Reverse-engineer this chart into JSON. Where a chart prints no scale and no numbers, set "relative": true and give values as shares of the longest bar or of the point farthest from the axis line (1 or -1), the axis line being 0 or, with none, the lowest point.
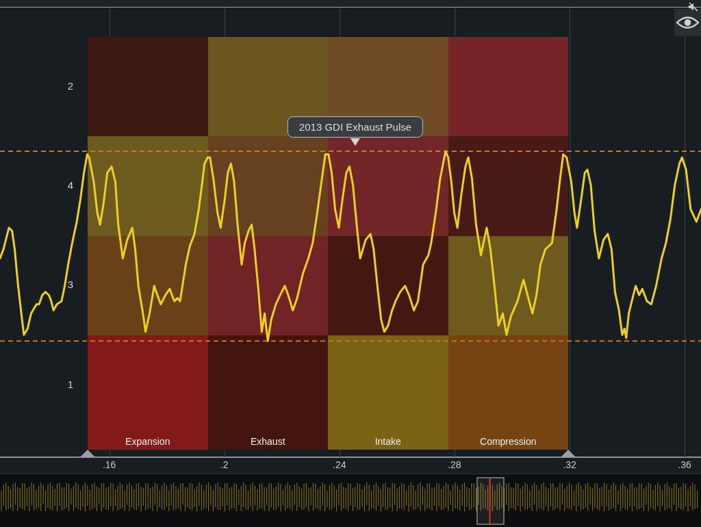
{
  "chart_data": [
    {
      "type": "other",
      "categories": [
        "Expansion",
        "Exhaust",
        "Intake",
        "Compression"
      ],
      "y_categories": [
        "2",
        "4",
        "3",
        "1"
      ],
      "colors": [
        "#3e1913",
        "#6b5620",
        "#6f4c25",
        "#762428",
        "#6c5a1e",
        "#65411f",
        "#732628",
        "#461a15",
        "#674218",
        "#722326",
        "#431811",
        "#6e5a1c",
        "#84191a",
        "#44150f",
        "#7a6314",
        "#754412"
      ]
    },
    {
      "type": "line",
      "title": "2013 GDI Exhaust Pulse",
      "relative": true,
      "x": [
        0.122,
        0.1232,
        0.1251,
        0.1262,
        0.1271,
        0.1283,
        0.1294,
        0.1303,
        0.1316,
        0.1328,
        0.1347,
        0.1356,
        0.1367,
        0.1378,
        0.139,
        0.1398,
        0.1406,
        0.1418,
        0.1434,
        0.1445,
        0.1457,
        0.1471,
        0.1487,
        0.1499,
        0.1512,
        0.1523,
        0.153,
        0.1546,
        0.1558,
        0.1568,
        0.158,
        0.1593,
        0.1608,
        0.1621,
        0.1631,
        0.1647,
        0.1662,
        0.168,
        0.169,
        0.1701,
        0.1717,
        0.1726,
        0.174,
        0.1756,
        0.1767,
        0.1779,
        0.1795,
        0.181,
        0.1826,
        0.1837,
        0.1846,
        0.1866,
        0.188,
        0.1896,
        0.1911,
        0.1922,
        0.1931,
        0.1942,
        0.195,
        0.1962,
        0.1976,
        0.1987,
        0.2001,
        0.2012,
        0.2023,
        0.2034,
        0.2046,
        0.206,
        0.2071,
        0.2084,
        0.2095,
        0.2105,
        0.2118,
        0.213,
        0.214,
        0.2151,
        0.2163,
        0.2179,
        0.2194,
        0.221,
        0.2222,
        0.2238,
        0.2253,
        0.2273,
        0.2292,
        0.2307,
        0.2323,
        0.2339,
        0.2351,
        0.2362,
        0.2373,
        0.2385,
        0.2398,
        0.241,
        0.2424,
        0.2435,
        0.2447,
        0.246,
        0.2472,
        0.2491,
        0.2508,
        0.2519,
        0.2533,
        0.2545,
        0.2556,
        0.2569,
        0.2583,
        0.2595,
        0.2611,
        0.2628,
        0.2642,
        0.2659,
        0.2673,
        0.2691,
        0.2709,
        0.2719,
        0.2735,
        0.275,
        0.2769,
        0.2778,
        0.2789,
        0.2799,
        0.281,
        0.2824,
        0.2838,
        0.2848,
        0.2861,
        0.2875,
        0.2892,
        0.2903,
        0.2912,
        0.2925,
        0.294,
        0.2953,
        0.2968,
        0.2981,
        0.2996,
        0.3019,
        0.304,
        0.3054,
        0.3071,
        0.3085,
        0.3099,
        0.3116,
        0.3139,
        0.3155,
        0.3167,
        0.3178,
        0.319,
        0.3206,
        0.3217,
        0.3226,
        0.324,
        0.3253,
        0.3262,
        0.3274,
        0.3287,
        0.3302,
        0.3318,
        0.3333,
        0.3346,
        0.3358,
        0.3372,
        0.3383,
        0.3391,
        0.3397,
        0.3406,
        0.3419,
        0.343,
        0.3442,
        0.3453,
        0.3469,
        0.3484,
        0.3501,
        0.352,
        0.3535,
        0.3551,
        0.3566,
        0.3582,
        0.3591,
        0.3605,
        0.3621,
        0.3641,
        0.3657
      ],
      "series": [
        {
          "color": "#ecd022",
          "values": [
            0.65,
            0.68,
            0.75,
            0.74,
            0.68,
            0.56,
            0.47,
            0.4,
            0.42,
            0.47,
            0.5,
            0.5,
            0.53,
            0.54,
            0.53,
            0.51,
            0.48,
            0.5,
            0.51,
            0.56,
            0.63,
            0.7,
            0.77,
            0.84,
            0.93,
            0.99,
            0.98,
            0.9,
            0.8,
            0.76,
            0.83,
            0.93,
            0.95,
            0.9,
            0.76,
            0.65,
            0.71,
            0.75,
            0.68,
            0.56,
            0.47,
            0.41,
            0.47,
            0.56,
            0.53,
            0.5,
            0.53,
            0.55,
            0.51,
            0.52,
            0.51,
            0.63,
            0.69,
            0.73,
            0.81,
            0.89,
            0.96,
            0.98,
            0.98,
            0.91,
            0.8,
            0.75,
            0.84,
            0.93,
            0.96,
            0.9,
            0.76,
            0.63,
            0.7,
            0.74,
            0.76,
            0.68,
            0.55,
            0.41,
            0.47,
            0.38,
            0.45,
            0.5,
            0.53,
            0.56,
            0.53,
            0.48,
            0.52,
            0.6,
            0.65,
            0.7,
            0.8,
            0.91,
            0.99,
            0.99,
            0.93,
            0.81,
            0.75,
            0.84,
            0.93,
            0.95,
            0.89,
            0.76,
            0.65,
            0.71,
            0.73,
            0.68,
            0.55,
            0.45,
            0.41,
            0.43,
            0.48,
            0.51,
            0.54,
            0.56,
            0.53,
            0.48,
            0.51,
            0.63,
            0.66,
            0.7,
            0.8,
            0.91,
            1.0,
            0.98,
            0.9,
            0.8,
            0.75,
            0.86,
            0.95,
            0.98,
            0.91,
            0.76,
            0.66,
            0.71,
            0.75,
            0.68,
            0.55,
            0.43,
            0.47,
            0.4,
            0.46,
            0.51,
            0.58,
            0.53,
            0.47,
            0.53,
            0.63,
            0.68,
            0.7,
            0.81,
            0.91,
            0.99,
            0.98,
            0.9,
            0.8,
            0.75,
            0.84,
            0.93,
            0.94,
            0.89,
            0.74,
            0.65,
            0.71,
            0.73,
            0.68,
            0.54,
            0.48,
            0.4,
            0.42,
            0.39,
            0.47,
            0.52,
            0.56,
            0.53,
            0.55,
            0.51,
            0.5,
            0.56,
            0.65,
            0.7,
            0.78,
            0.89,
            0.96,
            0.98,
            0.94,
            0.81,
            0.77,
            0.81
          ]
        }
      ],
      "xlim": [
        0.122,
        0.3657
      ],
      "xticks": [
        {
          "value": 0.16,
          "label": ".16"
        },
        {
          "value": 0.2,
          "label": ".2"
        },
        {
          "value": 0.24,
          "label": ".24"
        },
        {
          "value": 0.28,
          "label": ".28"
        },
        {
          "value": 0.32,
          "label": ".32"
        },
        {
          "value": 0.36,
          "label": ".36"
        }
      ],
      "ref_lines": [
        {
          "axis": "y",
          "value": 1.0,
          "color": "#d2731f",
          "line_style": "dashed"
        },
        {
          "axis": "y",
          "value": 0.38,
          "color": "#d2731f",
          "line_style": "dashed"
        }
      ],
      "grid": "x",
      "marker": "none",
      "line_style": "solid"
    }
  ]
}
